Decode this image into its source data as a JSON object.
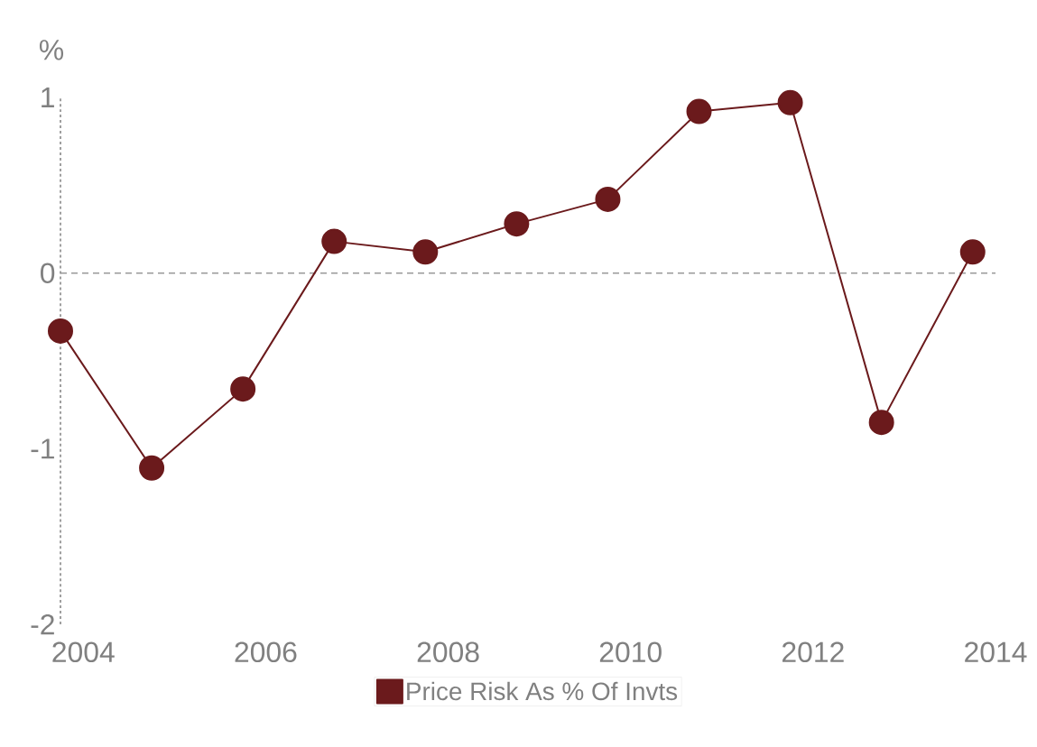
{
  "chart_data": {
    "type": "line",
    "ylabel": "%",
    "x": [
      2003.75,
      2004.75,
      2005.75,
      2006.75,
      2007.75,
      2008.75,
      2009.75,
      2010.75,
      2011.75,
      2012.75,
      2013.75
    ],
    "series": [
      {
        "name": "Price Risk As % Of Invts",
        "color": "#6b1a1c",
        "values": [
          -0.33,
          -1.11,
          -0.66,
          0.18,
          0.12,
          0.28,
          0.42,
          0.92,
          0.97,
          -0.85,
          0.12
        ]
      }
    ],
    "xlim": [
      2003.75,
      2014
    ],
    "xticks": [
      2004,
      2006,
      2008,
      2010,
      2012,
      2014
    ],
    "ylim": [
      -2,
      1
    ],
    "yticks": [
      -2,
      -1,
      0,
      1
    ],
    "ref_lines": [
      {
        "axis": "y",
        "value": 0,
        "color": "#9a9a9a",
        "line_style": "dashed"
      }
    ],
    "grid": false,
    "legend": "bottom",
    "marker": "circle",
    "line_style": "solid"
  }
}
